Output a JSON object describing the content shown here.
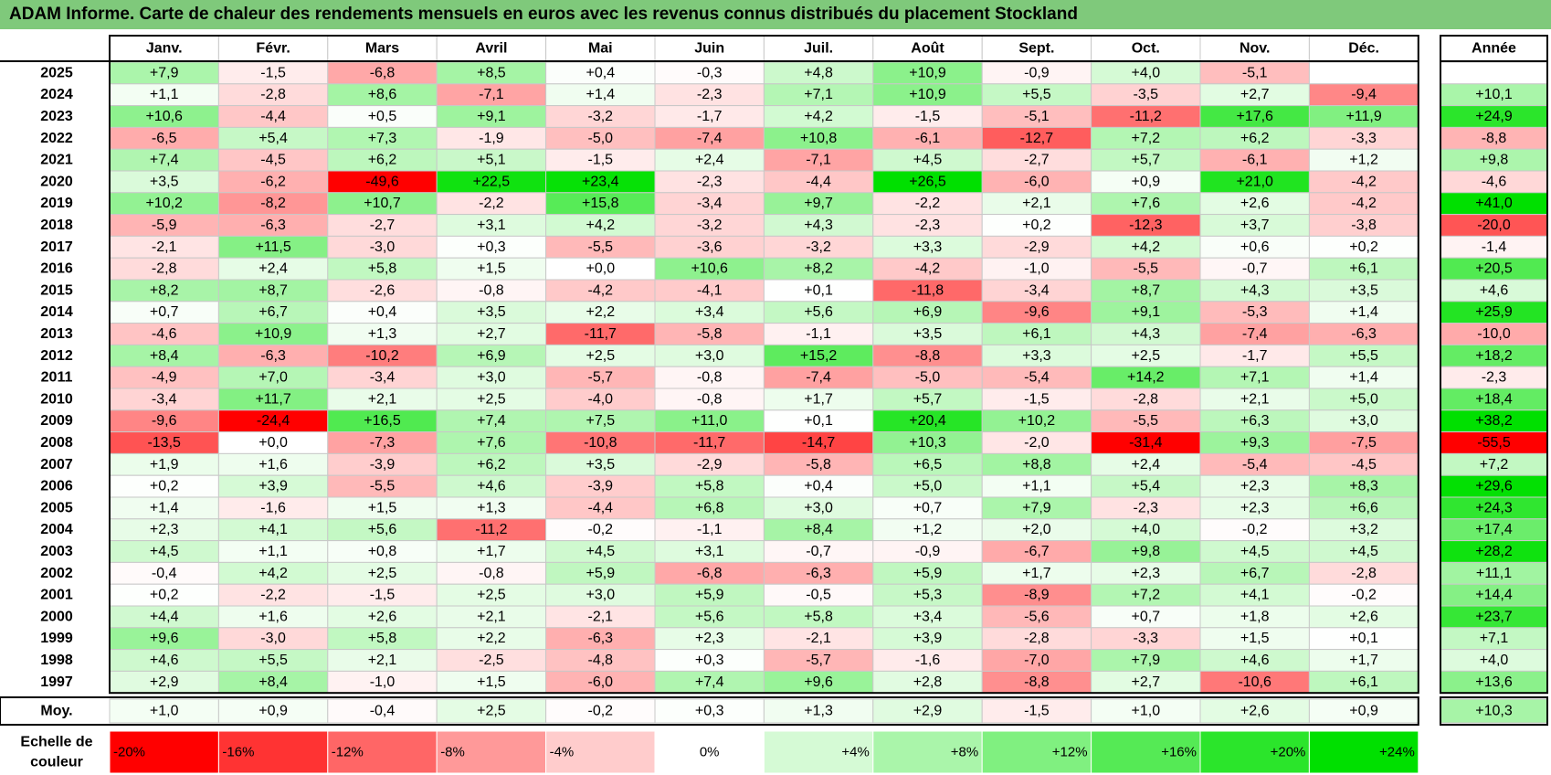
{
  "title": "ADAM Informe. Carte de chaleur des rendements mensuels en euros avec les revenus connus distribués du placement Stockland",
  "chart_data": {
    "type": "heatmap",
    "title": "ADAM Informe. Carte de chaleur des rendements mensuels en euros avec les revenus connus distribués du placement Stockland",
    "columns": [
      "Janv.",
      "Févr.",
      "Mars",
      "Avril",
      "Mai",
      "Juin",
      "Juil.",
      "Août",
      "Sept.",
      "Oct.",
      "Nov.",
      "Déc."
    ],
    "year_column_label": "Année",
    "average_row_label": "Moy.",
    "rows": [
      {
        "year": "2025",
        "values": [
          "+7,9",
          "-1,5",
          "-6,8",
          "+8,5",
          "+0,4",
          "-0,3",
          "+4,8",
          "+10,9",
          "-0,9",
          "+4,0",
          "-5,1",
          ""
        ],
        "annual": ""
      },
      {
        "year": "2024",
        "values": [
          "+1,1",
          "-2,8",
          "+8,6",
          "-7,1",
          "+1,4",
          "-2,3",
          "+7,1",
          "+10,9",
          "+5,5",
          "-3,5",
          "+2,7",
          "-9,4"
        ],
        "annual": "+10,1"
      },
      {
        "year": "2023",
        "values": [
          "+10,6",
          "-4,4",
          "+0,5",
          "+9,1",
          "-3,2",
          "-1,7",
          "+4,2",
          "-1,5",
          "-5,1",
          "-11,2",
          "+17,6",
          "+11,9"
        ],
        "annual": "+24,9"
      },
      {
        "year": "2022",
        "values": [
          "-6,5",
          "+5,4",
          "+7,3",
          "-1,9",
          "-5,0",
          "-7,4",
          "+10,8",
          "-6,1",
          "-12,7",
          "+7,2",
          "+6,2",
          "-3,3"
        ],
        "annual": "-8,8"
      },
      {
        "year": "2021",
        "values": [
          "+7,4",
          "-4,5",
          "+6,2",
          "+5,1",
          "-1,5",
          "+2,4",
          "-7,1",
          "+4,5",
          "-2,7",
          "+5,7",
          "-6,1",
          "+1,2"
        ],
        "annual": "+9,8"
      },
      {
        "year": "2020",
        "values": [
          "+3,5",
          "-6,2",
          "-49,6",
          "+22,5",
          "+23,4",
          "-2,3",
          "-4,4",
          "+26,5",
          "-6,0",
          "+0,9",
          "+21,0",
          "-4,2"
        ],
        "annual": "-4,6"
      },
      {
        "year": "2019",
        "values": [
          "+10,2",
          "-8,2",
          "+10,7",
          "-2,2",
          "+15,8",
          "-3,4",
          "+9,7",
          "-2,2",
          "+2,1",
          "+7,6",
          "+2,6",
          "-4,2"
        ],
        "annual": "+41,0"
      },
      {
        "year": "2018",
        "values": [
          "-5,9",
          "-6,3",
          "-2,7",
          "+3,1",
          "+4,2",
          "-3,2",
          "+4,3",
          "-2,3",
          "+0,2",
          "-12,3",
          "+3,7",
          "-3,8"
        ],
        "annual": "-20,0"
      },
      {
        "year": "2017",
        "values": [
          "-2,1",
          "+11,5",
          "-3,0",
          "+0,3",
          "-5,5",
          "-3,6",
          "-3,2",
          "+3,3",
          "-2,9",
          "+4,2",
          "+0,6",
          "+0,2"
        ],
        "annual": "-1,4"
      },
      {
        "year": "2016",
        "values": [
          "-2,8",
          "+2,4",
          "+5,8",
          "+1,5",
          "+0,0",
          "+10,6",
          "+8,2",
          "-4,2",
          "-1,0",
          "-5,5",
          "-0,7",
          "+6,1"
        ],
        "annual": "+20,5"
      },
      {
        "year": "2015",
        "values": [
          "+8,2",
          "+8,7",
          "-2,6",
          "-0,8",
          "-4,2",
          "-4,1",
          "+0,1",
          "-11,8",
          "-3,4",
          "+8,7",
          "+4,3",
          "+3,5"
        ],
        "annual": "+4,6"
      },
      {
        "year": "2014",
        "values": [
          "+0,7",
          "+6,7",
          "+0,4",
          "+3,5",
          "+2,2",
          "+3,4",
          "+5,6",
          "+6,9",
          "-9,6",
          "+9,1",
          "-5,3",
          "+1,4"
        ],
        "annual": "+25,9"
      },
      {
        "year": "2013",
        "values": [
          "-4,6",
          "+10,9",
          "+1,3",
          "+2,7",
          "-11,7",
          "-5,8",
          "-1,1",
          "+3,5",
          "+6,1",
          "+4,3",
          "-7,4",
          "-6,3"
        ],
        "annual": "-10,0"
      },
      {
        "year": "2012",
        "values": [
          "+8,4",
          "-6,3",
          "-10,2",
          "+6,9",
          "+2,5",
          "+3,0",
          "+15,2",
          "-8,8",
          "+3,3",
          "+2,5",
          "-1,7",
          "+5,5"
        ],
        "annual": "+18,2"
      },
      {
        "year": "2011",
        "values": [
          "-4,9",
          "+7,0",
          "-3,4",
          "+3,0",
          "-5,7",
          "-0,8",
          "-7,4",
          "-5,0",
          "-5,4",
          "+14,2",
          "+7,1",
          "+1,4"
        ],
        "annual": "-2,3"
      },
      {
        "year": "2010",
        "values": [
          "-3,4",
          "+11,7",
          "+2,1",
          "+2,5",
          "-4,0",
          "-0,8",
          "+1,7",
          "+5,7",
          "-1,5",
          "-2,8",
          "+2,1",
          "+5,0"
        ],
        "annual": "+18,4"
      },
      {
        "year": "2009",
        "values": [
          "-9,6",
          "-24,4",
          "+16,5",
          "+7,4",
          "+7,5",
          "+11,0",
          "+0,1",
          "+20,4",
          "+10,2",
          "-5,5",
          "+6,3",
          "+3,0"
        ],
        "annual": "+38,2"
      },
      {
        "year": "2008",
        "values": [
          "-13,5",
          "+0,0",
          "-7,3",
          "+7,6",
          "-10,8",
          "-11,7",
          "-14,7",
          "+10,3",
          "-2,0",
          "-31,4",
          "+9,3",
          "-7,5"
        ],
        "annual": "-55,5"
      },
      {
        "year": "2007",
        "values": [
          "+1,9",
          "+1,6",
          "-3,9",
          "+6,2",
          "+3,5",
          "-2,9",
          "-5,8",
          "+6,5",
          "+8,8",
          "+2,4",
          "-5,4",
          "-4,5"
        ],
        "annual": "+7,2"
      },
      {
        "year": "2006",
        "values": [
          "+0,2",
          "+3,9",
          "-5,5",
          "+4,6",
          "-3,9",
          "+5,8",
          "+0,4",
          "+5,0",
          "+1,1",
          "+5,4",
          "+2,3",
          "+8,3"
        ],
        "annual": "+29,6"
      },
      {
        "year": "2005",
        "values": [
          "+1,4",
          "-1,6",
          "+1,5",
          "+1,3",
          "-4,4",
          "+6,8",
          "+3,0",
          "+0,7",
          "+7,9",
          "-2,3",
          "+2,3",
          "+6,6"
        ],
        "annual": "+24,3"
      },
      {
        "year": "2004",
        "values": [
          "+2,3",
          "+4,1",
          "+5,6",
          "-11,2",
          "-0,2",
          "-1,1",
          "+8,4",
          "+1,2",
          "+2,0",
          "+4,0",
          "-0,2",
          "+3,2"
        ],
        "annual": "+17,4"
      },
      {
        "year": "2003",
        "values": [
          "+4,5",
          "+1,1",
          "+0,8",
          "+1,7",
          "+4,5",
          "+3,1",
          "-0,7",
          "-0,9",
          "-6,7",
          "+9,8",
          "+4,5",
          "+4,5"
        ],
        "annual": "+28,2"
      },
      {
        "year": "2002",
        "values": [
          "-0,4",
          "+4,2",
          "+2,5",
          "-0,8",
          "+5,9",
          "-6,8",
          "-6,3",
          "+5,9",
          "+1,7",
          "+2,3",
          "+6,7",
          "-2,8"
        ],
        "annual": "+11,1"
      },
      {
        "year": "2001",
        "values": [
          "+0,2",
          "-2,2",
          "-1,5",
          "+2,5",
          "+3,0",
          "+5,9",
          "-0,5",
          "+5,3",
          "-8,9",
          "+7,2",
          "+4,1",
          "-0,2"
        ],
        "annual": "+14,4"
      },
      {
        "year": "2000",
        "values": [
          "+4,4",
          "+1,6",
          "+2,6",
          "+2,1",
          "-2,1",
          "+5,6",
          "+5,8",
          "+3,4",
          "-5,6",
          "+0,7",
          "+1,8",
          "+2,6"
        ],
        "annual": "+23,7"
      },
      {
        "year": "1999",
        "values": [
          "+9,6",
          "-3,0",
          "+5,8",
          "+2,2",
          "-6,3",
          "+2,3",
          "-2,1",
          "+3,9",
          "-2,8",
          "-3,3",
          "+1,5",
          "+0,1"
        ],
        "annual": "+7,1"
      },
      {
        "year": "1998",
        "values": [
          "+4,6",
          "+5,5",
          "+2,1",
          "-2,5",
          "-4,8",
          "+0,3",
          "-5,7",
          "-1,6",
          "-7,0",
          "+7,9",
          "+4,6",
          "+1,7"
        ],
        "annual": "+4,0"
      },
      {
        "year": "1997",
        "values": [
          "+2,9",
          "+8,4",
          "-1,0",
          "+1,5",
          "-6,0",
          "+7,4",
          "+9,6",
          "+2,8",
          "-8,8",
          "+2,7",
          "-10,6",
          "+6,1"
        ],
        "annual": "+13,6"
      }
    ],
    "average": {
      "values": [
        "+1,0",
        "+0,9",
        "-0,4",
        "+2,5",
        "-0,2",
        "+0,3",
        "+1,3",
        "+2,9",
        "-1,5",
        "+1,0",
        "+2,6",
        "+0,9"
      ],
      "annual": "+10,3"
    },
    "color_scale": {
      "label_line1": "Echelle de",
      "label_line2": "couleur",
      "stops": [
        "-20%",
        "-16%",
        "-12%",
        "-8%",
        "-4%",
        "0%",
        "+4%",
        "+8%",
        "+12%",
        "+16%",
        "+20%",
        "+24%"
      ],
      "negative_color": "#ff0000",
      "neutral_color": "#ffffff",
      "positive_color": "#00e000"
    }
  }
}
